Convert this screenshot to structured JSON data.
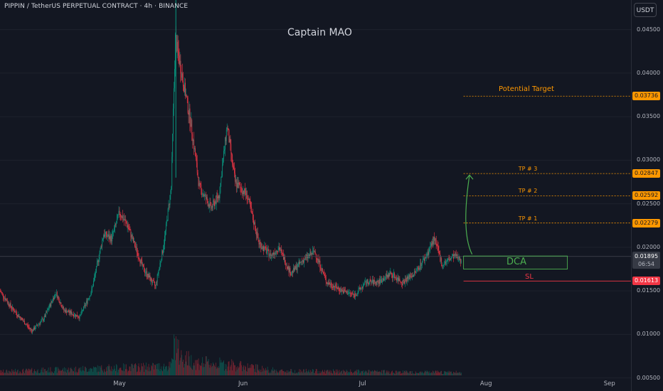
{
  "header": {
    "title": "PIPPIN / TetherUS PERPETUAL CONTRACT · 4h · BINANCE",
    "author": "Captain MAO",
    "unit_button": "USDT"
  },
  "colors": {
    "background": "#131722",
    "up": "#089981",
    "down": "#f23645",
    "target": "#ff9800",
    "dca": "#4caf50",
    "sl": "#f23645"
  },
  "chart_data": {
    "type": "candlestick",
    "timeframe": "4h",
    "x_ticks": [
      "May",
      "Jun",
      "Jul",
      "Aug",
      "Sep"
    ],
    "y_ticks": [
      "0.04500",
      "0.04000",
      "0.03500",
      "0.03000",
      "0.02500",
      "0.02000",
      "0.01500",
      "0.01000",
      "0.00500"
    ],
    "ylim": [
      0.0035,
      0.0484
    ],
    "price_path": [
      [
        "2025-04-01",
        0.015
      ],
      [
        "2025-04-04",
        0.013
      ],
      [
        "2025-04-09",
        0.0104
      ],
      [
        "2025-04-12",
        0.0118
      ],
      [
        "2025-04-15",
        0.0148
      ],
      [
        "2025-04-17",
        0.0128
      ],
      [
        "2025-04-21",
        0.012
      ],
      [
        "2025-04-24",
        0.015
      ],
      [
        "2025-04-27",
        0.0215
      ],
      [
        "2025-04-29",
        0.021
      ],
      [
        "2025-05-01",
        0.024
      ],
      [
        "2025-05-03",
        0.0225
      ],
      [
        "2025-05-05",
        0.02
      ],
      [
        "2025-05-07",
        0.0175
      ],
      [
        "2025-05-10",
        0.0155
      ],
      [
        "2025-05-12",
        0.02
      ],
      [
        "2025-05-14",
        0.027
      ],
      [
        "2025-05-15",
        0.044
      ],
      [
        "2025-05-17",
        0.039
      ],
      [
        "2025-05-19",
        0.034
      ],
      [
        "2025-05-21",
        0.027
      ],
      [
        "2025-05-24",
        0.0245
      ],
      [
        "2025-05-26",
        0.026
      ],
      [
        "2025-05-28",
        0.034
      ],
      [
        "2025-05-30",
        0.0275
      ],
      [
        "2025-06-02",
        0.026
      ],
      [
        "2025-06-05",
        0.0205
      ],
      [
        "2025-06-08",
        0.019
      ],
      [
        "2025-06-10",
        0.02
      ],
      [
        "2025-06-13",
        0.017
      ],
      [
        "2025-06-16",
        0.0185
      ],
      [
        "2025-06-19",
        0.0195
      ],
      [
        "2025-06-22",
        0.016
      ],
      [
        "2025-06-26",
        0.015
      ],
      [
        "2025-06-29",
        0.0145
      ],
      [
        "2025-07-02",
        0.016
      ],
      [
        "2025-07-05",
        0.016
      ],
      [
        "2025-07-08",
        0.017
      ],
      [
        "2025-07-11",
        0.016
      ],
      [
        "2025-07-14",
        0.017
      ],
      [
        "2025-07-17",
        0.019
      ],
      [
        "2025-07-19",
        0.021
      ],
      [
        "2025-07-21",
        0.018
      ],
      [
        "2025-07-24",
        0.019
      ],
      [
        "2025-07-26",
        0.0185
      ]
    ],
    "volume_path": [
      [
        "2025-04-01",
        0.1
      ],
      [
        "2025-05-14",
        0.25
      ],
      [
        "2025-05-15",
        1.0
      ],
      [
        "2025-05-16",
        0.55
      ],
      [
        "2025-05-20",
        0.35
      ],
      [
        "2025-05-28",
        0.3
      ],
      [
        "2025-06-10",
        0.12
      ],
      [
        "2025-07-26",
        0.08
      ]
    ],
    "last_price": "0.01895",
    "countdown": "06:54",
    "levels": [
      {
        "name": "Potential Target",
        "price": 0.03736,
        "label": "0.03736"
      },
      {
        "name": "TP # 3",
        "price": 0.02847,
        "label": "0.02847"
      },
      {
        "name": "TP # 2",
        "price": 0.02592,
        "label": "0.02592"
      },
      {
        "name": "TP # 1",
        "price": 0.02279,
        "label": "0.02279"
      },
      {
        "name": "SL",
        "price": 0.01613,
        "label": "0.01613"
      }
    ],
    "dca_zone": {
      "label": "DCA",
      "low": 0.0175,
      "high": 0.019
    },
    "last_visible_date": "2025-07-26"
  }
}
